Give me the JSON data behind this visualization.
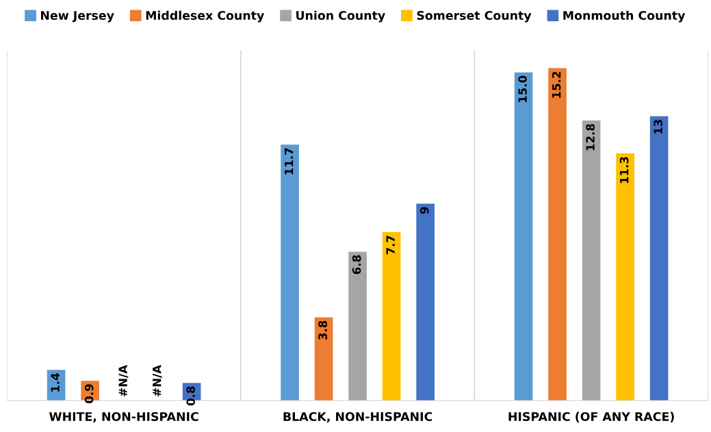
{
  "chart_data": {
    "type": "bar",
    "categories": [
      "WHITE, NON-HISPANIC",
      "BLACK, NON-HISPANIC",
      "HISPANIC (OF ANY RACE)"
    ],
    "series": [
      {
        "name": "New Jersey",
        "color": "#5b9bd5",
        "values": [
          1.4,
          11.7,
          15.0
        ],
        "value_labels": [
          "1.4",
          "11.7",
          "15.0"
        ]
      },
      {
        "name": "Middlesex County",
        "color": "#ed7d31",
        "values": [
          0.9,
          3.8,
          15.2
        ],
        "value_labels": [
          "0.9",
          "3.8",
          "15.2"
        ]
      },
      {
        "name": "Union County",
        "color": "#a5a5a5",
        "values": [
          null,
          6.8,
          12.8
        ],
        "value_labels": [
          "#N/A",
          "6.8",
          "12.8"
        ]
      },
      {
        "name": "Somerset County",
        "color": "#ffc000",
        "values": [
          null,
          7.7,
          11.3
        ],
        "value_labels": [
          "#N/A",
          "7.7",
          "11.3"
        ]
      },
      {
        "name": "Monmouth County",
        "color": "#4472c4",
        "values": [
          0.8,
          9,
          13
        ],
        "value_labels": [
          "0.8",
          "9",
          "13"
        ]
      }
    ],
    "ylim": [
      0,
      16
    ],
    "tick_labels": "x",
    "grid": "x",
    "legend": "top"
  }
}
